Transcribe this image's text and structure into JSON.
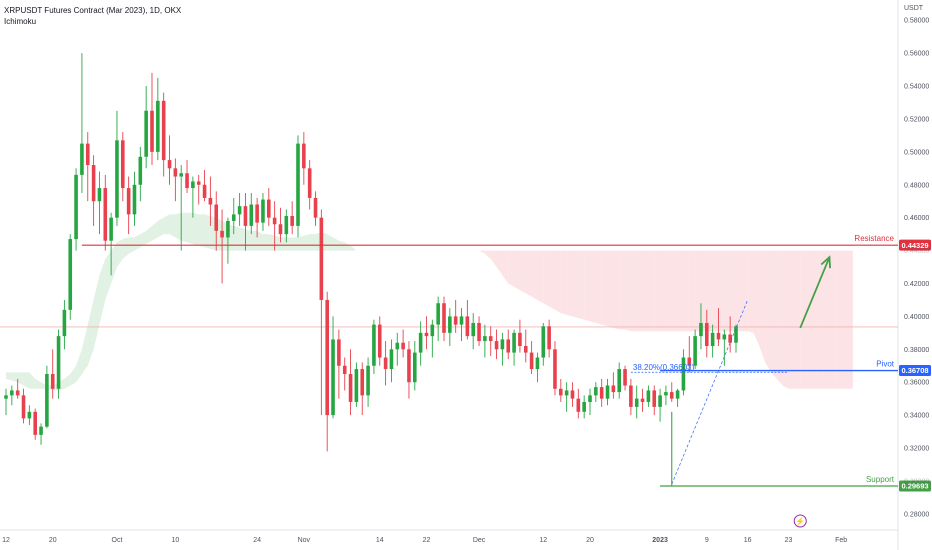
{
  "header": {
    "title": "XRPUSDT Futures Contract (Mar 2023), 1D, OKX",
    "indicator": "Ichimoku",
    "currency": "USDT"
  },
  "colors": {
    "up": "#26a641",
    "down": "#e8414d",
    "resistance": "#e0313d",
    "pivot": "#2962ff",
    "support": "#43a047",
    "arrow": "#43a047",
    "cloud_bull": "#d7ecd9",
    "cloud_bear": "#fbd9dc",
    "fib": "#2962ff",
    "price_line": "#f1b5b5"
  },
  "chart_data": {
    "type": "candlestick",
    "y_ticks": [
      "0.58000",
      "0.56000",
      "0.54000",
      "0.52000",
      "0.50000",
      "0.48000",
      "0.46000",
      "0.44000",
      "0.42000",
      "0.40000",
      "0.38000",
      "0.36000",
      "0.34000",
      "0.32000",
      "0.30000",
      "0.28000"
    ],
    "ylim": [
      0.272,
      0.585
    ],
    "x_ticks": [
      {
        "label": "12",
        "i": 0
      },
      {
        "label": "20",
        "i": 8
      },
      {
        "label": "Oct",
        "i": 19
      },
      {
        "label": "10",
        "i": 29
      },
      {
        "label": "24",
        "i": 43
      },
      {
        "label": "Nov",
        "i": 51
      },
      {
        "label": "14",
        "i": 64
      },
      {
        "label": "22",
        "i": 72
      },
      {
        "label": "Dec",
        "i": 81
      },
      {
        "label": "12",
        "i": 92
      },
      {
        "label": "20",
        "i": 100
      },
      {
        "label": "2023",
        "i": 112
      },
      {
        "label": "9",
        "i": 120
      },
      {
        "label": "16",
        "i": 127
      },
      {
        "label": "23",
        "i": 134
      },
      {
        "label": "Feb",
        "i": 143
      }
    ],
    "ohlc": [
      [
        0.35,
        0.356,
        0.34,
        0.352
      ],
      [
        0.352,
        0.358,
        0.346,
        0.355
      ],
      [
        0.355,
        0.362,
        0.35,
        0.352
      ],
      [
        0.352,
        0.356,
        0.335,
        0.338
      ],
      [
        0.338,
        0.346,
        0.334,
        0.342
      ],
      [
        0.342,
        0.344,
        0.325,
        0.328
      ],
      [
        0.328,
        0.335,
        0.322,
        0.333
      ],
      [
        0.333,
        0.37,
        0.332,
        0.365
      ],
      [
        0.365,
        0.38,
        0.35,
        0.356
      ],
      [
        0.356,
        0.392,
        0.35,
        0.388
      ],
      [
        0.388,
        0.41,
        0.38,
        0.404
      ],
      [
        0.404,
        0.45,
        0.398,
        0.447
      ],
      [
        0.447,
        0.49,
        0.44,
        0.486
      ],
      [
        0.486,
        0.56,
        0.475,
        0.505
      ],
      [
        0.505,
        0.512,
        0.47,
        0.492
      ],
      [
        0.492,
        0.498,
        0.455,
        0.47
      ],
      [
        0.47,
        0.488,
        0.45,
        0.478
      ],
      [
        0.478,
        0.486,
        0.44,
        0.446
      ],
      [
        0.446,
        0.463,
        0.425,
        0.46
      ],
      [
        0.46,
        0.525,
        0.455,
        0.507
      ],
      [
        0.507,
        0.512,
        0.47,
        0.478
      ],
      [
        0.478,
        0.485,
        0.45,
        0.462
      ],
      [
        0.462,
        0.488,
        0.455,
        0.48
      ],
      [
        0.48,
        0.503,
        0.47,
        0.497
      ],
      [
        0.497,
        0.54,
        0.49,
        0.525
      ],
      [
        0.525,
        0.548,
        0.492,
        0.5
      ],
      [
        0.5,
        0.545,
        0.495,
        0.531
      ],
      [
        0.531,
        0.536,
        0.485,
        0.495
      ],
      [
        0.495,
        0.51,
        0.48,
        0.49
      ],
      [
        0.49,
        0.496,
        0.47,
        0.485
      ],
      [
        0.485,
        0.492,
        0.44,
        0.487
      ],
      [
        0.487,
        0.495,
        0.475,
        0.478
      ],
      [
        0.478,
        0.485,
        0.46,
        0.482
      ],
      [
        0.482,
        0.486,
        0.468,
        0.48
      ],
      [
        0.48,
        0.489,
        0.47,
        0.472
      ],
      [
        0.472,
        0.485,
        0.455,
        0.468
      ],
      [
        0.468,
        0.476,
        0.44,
        0.452
      ],
      [
        0.452,
        0.465,
        0.42,
        0.448
      ],
      [
        0.448,
        0.46,
        0.432,
        0.458
      ],
      [
        0.458,
        0.472,
        0.45,
        0.462
      ],
      [
        0.462,
        0.475,
        0.455,
        0.467
      ],
      [
        0.467,
        0.475,
        0.44,
        0.455
      ],
      [
        0.455,
        0.475,
        0.45,
        0.468
      ],
      [
        0.468,
        0.472,
        0.448,
        0.457
      ],
      [
        0.457,
        0.475,
        0.452,
        0.471
      ],
      [
        0.471,
        0.478,
        0.455,
        0.46
      ],
      [
        0.46,
        0.47,
        0.44,
        0.456
      ],
      [
        0.456,
        0.466,
        0.445,
        0.45
      ],
      [
        0.45,
        0.465,
        0.445,
        0.461
      ],
      [
        0.461,
        0.47,
        0.45,
        0.455
      ],
      [
        0.455,
        0.51,
        0.448,
        0.505
      ],
      [
        0.505,
        0.512,
        0.48,
        0.49
      ],
      [
        0.49,
        0.495,
        0.465,
        0.472
      ],
      [
        0.472,
        0.476,
        0.455,
        0.46
      ],
      [
        0.46,
        0.465,
        0.34,
        0.41
      ],
      [
        0.41,
        0.415,
        0.318,
        0.34
      ],
      [
        0.34,
        0.4,
        0.338,
        0.386
      ],
      [
        0.386,
        0.392,
        0.35,
        0.37
      ],
      [
        0.37,
        0.375,
        0.355,
        0.365
      ],
      [
        0.365,
        0.38,
        0.34,
        0.348
      ],
      [
        0.348,
        0.372,
        0.345,
        0.368
      ],
      [
        0.368,
        0.372,
        0.34,
        0.352
      ],
      [
        0.352,
        0.375,
        0.345,
        0.37
      ],
      [
        0.37,
        0.398,
        0.365,
        0.395
      ],
      [
        0.395,
        0.4,
        0.37,
        0.375
      ],
      [
        0.375,
        0.385,
        0.358,
        0.368
      ],
      [
        0.368,
        0.386,
        0.36,
        0.38
      ],
      [
        0.38,
        0.39,
        0.37,
        0.384
      ],
      [
        0.384,
        0.392,
        0.375,
        0.38
      ],
      [
        0.38,
        0.385,
        0.35,
        0.36
      ],
      [
        0.36,
        0.385,
        0.355,
        0.378
      ],
      [
        0.378,
        0.397,
        0.37,
        0.39
      ],
      [
        0.39,
        0.4,
        0.38,
        0.388
      ],
      [
        0.388,
        0.398,
        0.375,
        0.395
      ],
      [
        0.395,
        0.412,
        0.385,
        0.408
      ],
      [
        0.408,
        0.412,
        0.385,
        0.39
      ],
      [
        0.39,
        0.405,
        0.382,
        0.4
      ],
      [
        0.4,
        0.41,
        0.39,
        0.395
      ],
      [
        0.395,
        0.405,
        0.385,
        0.4
      ],
      [
        0.4,
        0.41,
        0.386,
        0.388
      ],
      [
        0.388,
        0.402,
        0.38,
        0.396
      ],
      [
        0.396,
        0.4,
        0.382,
        0.385
      ],
      [
        0.385,
        0.395,
        0.375,
        0.388
      ],
      [
        0.388,
        0.394,
        0.376,
        0.385
      ],
      [
        0.385,
        0.392,
        0.374,
        0.38
      ],
      [
        0.38,
        0.39,
        0.37,
        0.386
      ],
      [
        0.386,
        0.392,
        0.374,
        0.378
      ],
      [
        0.378,
        0.392,
        0.37,
        0.39
      ],
      [
        0.39,
        0.398,
        0.378,
        0.382
      ],
      [
        0.382,
        0.392,
        0.372,
        0.378
      ],
      [
        0.378,
        0.385,
        0.365,
        0.368
      ],
      [
        0.368,
        0.378,
        0.36,
        0.375
      ],
      [
        0.375,
        0.396,
        0.37,
        0.394
      ],
      [
        0.394,
        0.398,
        0.375,
        0.38
      ],
      [
        0.38,
        0.385,
        0.352,
        0.356
      ],
      [
        0.356,
        0.362,
        0.348,
        0.352
      ],
      [
        0.352,
        0.36,
        0.342,
        0.355
      ],
      [
        0.355,
        0.36,
        0.345,
        0.35
      ],
      [
        0.35,
        0.356,
        0.338,
        0.342
      ],
      [
        0.342,
        0.352,
        0.338,
        0.348
      ],
      [
        0.348,
        0.356,
        0.34,
        0.352
      ],
      [
        0.352,
        0.36,
        0.348,
        0.357
      ],
      [
        0.357,
        0.362,
        0.345,
        0.35
      ],
      [
        0.35,
        0.362,
        0.346,
        0.358
      ],
      [
        0.358,
        0.366,
        0.35,
        0.354
      ],
      [
        0.354,
        0.372,
        0.35,
        0.368
      ],
      [
        0.368,
        0.37,
        0.355,
        0.358
      ],
      [
        0.358,
        0.362,
        0.34,
        0.345
      ],
      [
        0.345,
        0.358,
        0.338,
        0.35
      ],
      [
        0.35,
        0.356,
        0.342,
        0.348
      ],
      [
        0.348,
        0.358,
        0.345,
        0.355
      ],
      [
        0.355,
        0.358,
        0.34,
        0.345
      ],
      [
        0.345,
        0.356,
        0.336,
        0.352
      ],
      [
        0.352,
        0.358,
        0.346,
        0.354
      ],
      [
        0.354,
        0.36,
        0.348,
        0.35
      ],
      [
        0.35,
        0.356,
        0.345,
        0.355
      ],
      [
        0.355,
        0.38,
        0.352,
        0.375
      ],
      [
        0.375,
        0.388,
        0.366,
        0.37
      ],
      [
        0.37,
        0.392,
        0.368,
        0.388
      ],
      [
        0.388,
        0.408,
        0.38,
        0.396
      ],
      [
        0.396,
        0.404,
        0.375,
        0.382
      ],
      [
        0.382,
        0.395,
        0.375,
        0.39
      ],
      [
        0.39,
        0.405,
        0.382,
        0.386
      ],
      [
        0.386,
        0.392,
        0.37,
        0.389
      ],
      [
        0.389,
        0.4,
        0.378,
        0.384
      ],
      [
        0.384,
        0.395,
        0.378,
        0.394
      ]
    ],
    "ichimoku_cloud": {
      "start_index": 0,
      "span_a": [
        0.366,
        0.366,
        0.366,
        0.366,
        0.366,
        0.362,
        0.36,
        0.358,
        0.358,
        0.36,
        0.362,
        0.365,
        0.37,
        0.38,
        0.395,
        0.41,
        0.425,
        0.435,
        0.44,
        0.445,
        0.447,
        0.448,
        0.448,
        0.45,
        0.452,
        0.455,
        0.458,
        0.46,
        0.462,
        0.462,
        0.463,
        0.463,
        0.463,
        0.462,
        0.462,
        0.461,
        0.46,
        0.458,
        0.456,
        0.455,
        0.454,
        0.453,
        0.452,
        0.452,
        0.45,
        0.45,
        0.449,
        0.448,
        0.448,
        0.448,
        0.448,
        0.449,
        0.45,
        0.45,
        0.451,
        0.45,
        0.448,
        0.446,
        0.445,
        0.443,
        0.44,
        0.44,
        0.44,
        0.44,
        0.44,
        0.44,
        0.44,
        0.44,
        0.44,
        0.44,
        0.44,
        0.44,
        0.44,
        0.44,
        0.44,
        0.44,
        0.44,
        0.44,
        0.44,
        0.44,
        0.44,
        0.44,
        0.438,
        0.435,
        0.43,
        0.425,
        0.42,
        0.418,
        0.416,
        0.414,
        0.412,
        0.41,
        0.408,
        0.406,
        0.404,
        0.402,
        0.401,
        0.4,
        0.399,
        0.398,
        0.397,
        0.396,
        0.395,
        0.394,
        0.393,
        0.392,
        0.392,
        0.391,
        0.391,
        0.391,
        0.391,
        0.391,
        0.391,
        0.391,
        0.391,
        0.391,
        0.391,
        0.391,
        0.391,
        0.391,
        0.391,
        0.391,
        0.391,
        0.391,
        0.391,
        0.391,
        0.391,
        0.391,
        0.39,
        0.382,
        0.372,
        0.366,
        0.362,
        0.358,
        0.356,
        0.356,
        0.356,
        0.356,
        0.356,
        0.356,
        0.356,
        0.356,
        0.356,
        0.356,
        0.356,
        0.356
      ],
      "span_b": [
        0.362,
        0.361,
        0.36,
        0.358,
        0.356,
        0.356,
        0.356,
        0.356,
        0.355,
        0.355,
        0.356,
        0.358,
        0.36,
        0.365,
        0.37,
        0.38,
        0.395,
        0.41,
        0.42,
        0.43,
        0.435,
        0.438,
        0.44,
        0.442,
        0.444,
        0.446,
        0.448,
        0.45,
        0.45,
        0.448,
        0.446,
        0.445,
        0.444,
        0.443,
        0.442,
        0.441,
        0.44,
        0.44,
        0.44,
        0.44,
        0.44,
        0.44,
        0.44,
        0.44,
        0.44,
        0.44,
        0.44,
        0.44,
        0.44,
        0.44,
        0.44,
        0.44,
        0.44,
        0.44,
        0.44,
        0.44,
        0.44,
        0.44,
        0.44,
        0.44,
        0.44,
        0.44,
        0.44,
        0.44,
        0.44,
        0.44,
        0.44,
        0.44,
        0.44,
        0.44,
        0.44,
        0.44,
        0.44,
        0.44,
        0.44,
        0.44,
        0.44,
        0.44,
        0.44,
        0.44,
        0.44,
        0.44,
        0.44,
        0.44,
        0.44,
        0.44,
        0.44,
        0.44,
        0.44,
        0.44,
        0.44,
        0.44,
        0.44,
        0.44,
        0.44,
        0.44,
        0.44,
        0.44,
        0.44,
        0.44,
        0.44,
        0.44,
        0.44,
        0.44,
        0.44,
        0.44,
        0.44,
        0.44,
        0.44,
        0.44,
        0.44,
        0.44,
        0.44,
        0.44,
        0.44,
        0.44,
        0.44,
        0.44,
        0.44,
        0.44,
        0.44,
        0.44,
        0.44,
        0.44,
        0.44,
        0.44,
        0.44,
        0.44,
        0.44,
        0.44,
        0.44,
        0.44,
        0.44,
        0.44,
        0.44,
        0.44,
        0.44,
        0.44,
        0.44,
        0.44,
        0.44,
        0.44,
        0.44,
        0.44,
        0.44,
        0.44
      ]
    },
    "levels": {
      "resistance": {
        "label": "Resistance",
        "value": 0.44329,
        "badge": "0.44329",
        "from_index": 13
      },
      "pivot": {
        "label": "Pivot",
        "value": 0.36708,
        "badge": "0.36708",
        "from_index": 112
      },
      "support": {
        "label": "Support",
        "value": 0.29693,
        "badge": "0.29693",
        "from_index": 112
      }
    },
    "fib": {
      "text": "38.20%(0.36603)",
      "value": 0.36603,
      "from_index": 107,
      "to_index": 134
    },
    "fib_swing": {
      "from_index": 114,
      "from_value": 0.298,
      "to_index": 127,
      "to_value": 0.41
    },
    "support_bracket": {
      "index": 114,
      "top": 0.342,
      "bottom": 0.29693
    },
    "projection_arrow": {
      "from_index": 136,
      "from_value": 0.393,
      "to_index": 141,
      "to_value": 0.436
    },
    "current_price": 0.3936,
    "lightning_index": 136,
    "lightning_symbol": "⚡"
  }
}
